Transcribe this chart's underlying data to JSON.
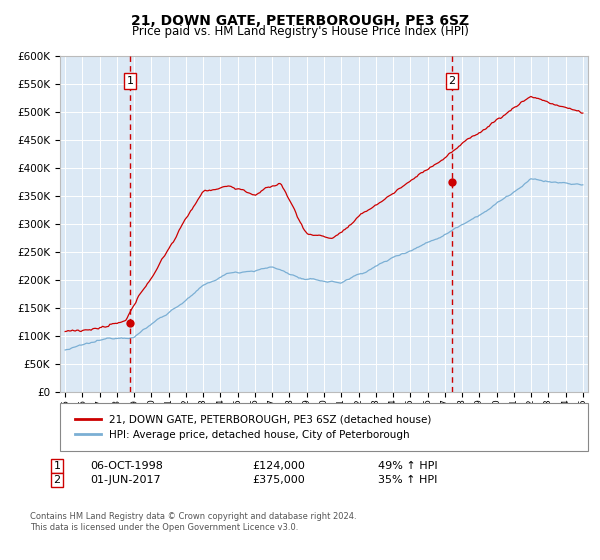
{
  "title": "21, DOWN GATE, PETERBOROUGH, PE3 6SZ",
  "subtitle": "Price paid vs. HM Land Registry's House Price Index (HPI)",
  "legend_line1": "21, DOWN GATE, PETERBOROUGH, PE3 6SZ (detached house)",
  "legend_line2": "HPI: Average price, detached house, City of Peterborough",
  "annotation1_label": "1",
  "annotation1_date": "06-OCT-1998",
  "annotation1_price": 124000,
  "annotation2_label": "2",
  "annotation2_date": "01-JUN-2017",
  "annotation2_price": 375000,
  "footnote": "Contains HM Land Registry data © Crown copyright and database right 2024.\nThis data is licensed under the Open Government Licence v3.0.",
  "hpi_color": "#7bafd4",
  "price_color": "#cc0000",
  "plot_bg": "#dce9f5",
  "vline_color": "#cc0000",
  "ylim": [
    0,
    600000
  ],
  "ytick_step": 50000,
  "x_start_year": 1995,
  "x_end_year": 2025,
  "sale1_year": 1998.75,
  "sale2_year": 2017.42
}
